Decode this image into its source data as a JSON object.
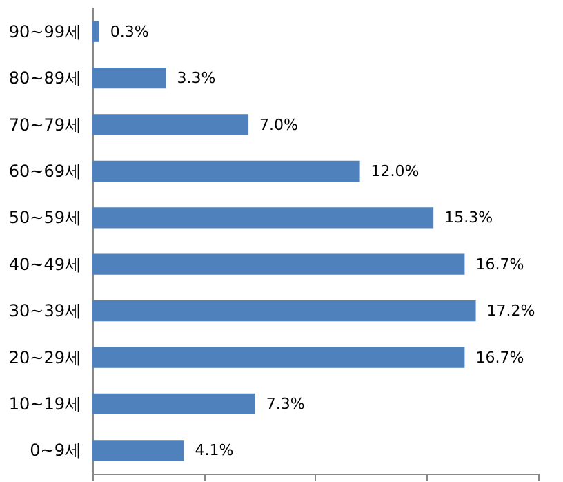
{
  "chart_data": {
    "type": "bar",
    "orientation": "horizontal",
    "categories": [
      "90~99세",
      "80~89세",
      "70~79세",
      "60~69세",
      "50~59세",
      "40~49세",
      "30~39세",
      "20~29세",
      "10~19세",
      "0~9세"
    ],
    "values": [
      0.3,
      3.3,
      7.0,
      12.0,
      15.3,
      16.7,
      17.2,
      16.7,
      7.3,
      4.1
    ],
    "value_labels": [
      "0.3%",
      "3.3%",
      "7.0%",
      "12.0%",
      "15.3%",
      "16.7%",
      "17.2%",
      "16.7%",
      "7.3%",
      "4.1%"
    ],
    "color": "#4f81bd",
    "xlim": [
      0,
      20
    ],
    "xticks": [
      {
        "value": 0,
        "label": null
      },
      {
        "value": 5,
        "label": null
      },
      {
        "value": 10,
        "label": null
      },
      {
        "value": 15,
        "label": null
      },
      {
        "value": 20,
        "label": null
      }
    ],
    "tick_labels": "y",
    "grid": false
  }
}
